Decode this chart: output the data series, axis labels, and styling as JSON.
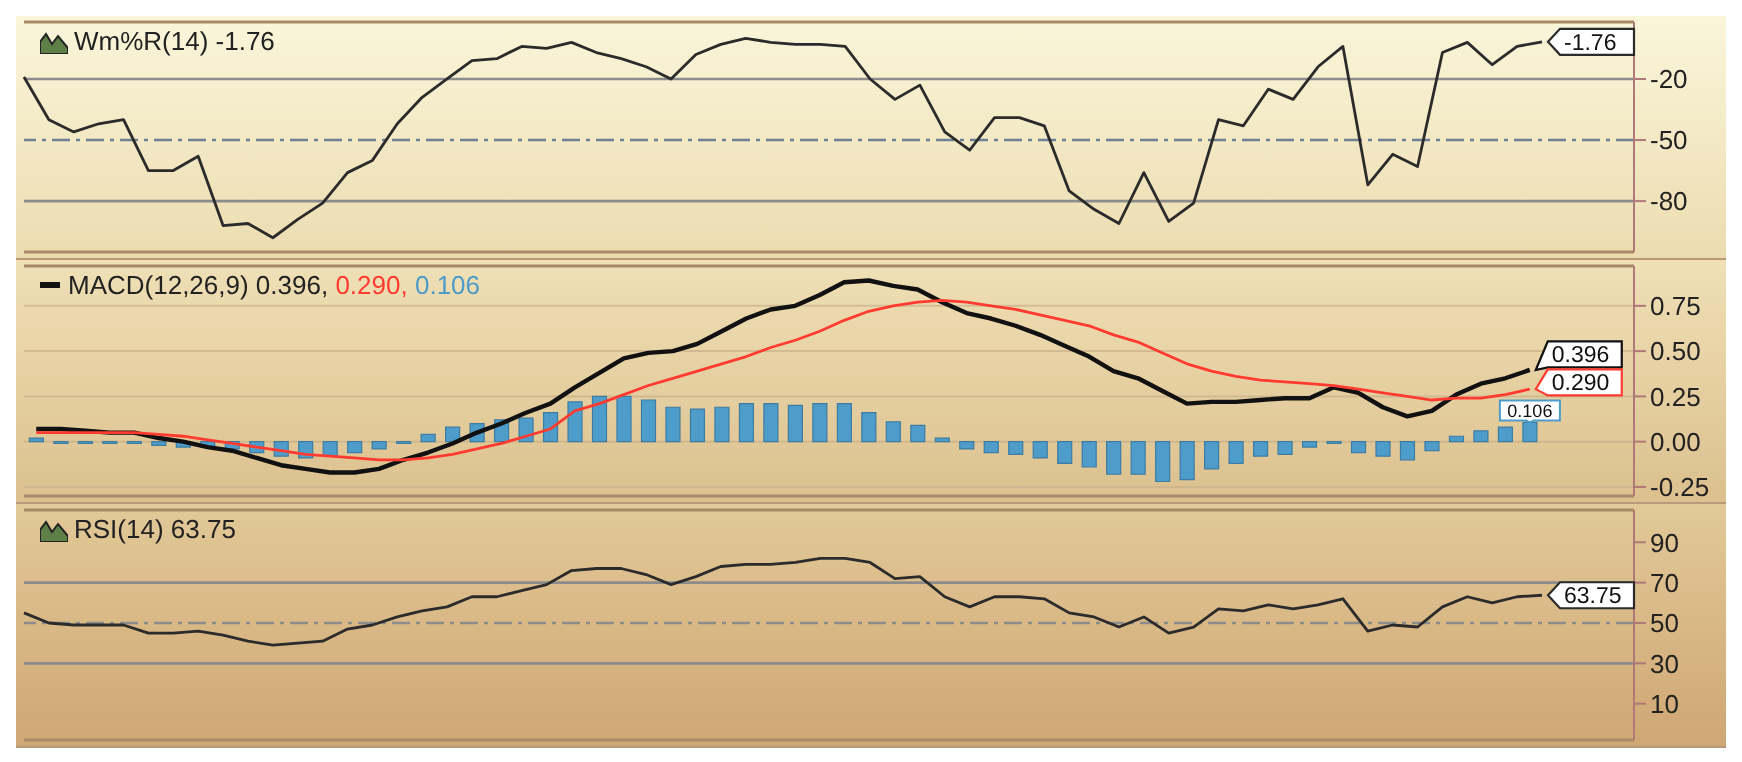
{
  "chart_data": [
    {
      "type": "line",
      "title": "Wm%R(14) -1.76",
      "categories": [
        null,
        null,
        null,
        null,
        null,
        null,
        null,
        null,
        null,
        null,
        null,
        null,
        null,
        null,
        null,
        null,
        null,
        null,
        null,
        null,
        null,
        null,
        null,
        null,
        null,
        null,
        null,
        null,
        null,
        null,
        null,
        null,
        null,
        null,
        null,
        null,
        null,
        null,
        null,
        null,
        null,
        null,
        null,
        null,
        null,
        null,
        null,
        null,
        null,
        null,
        null,
        null,
        null,
        null,
        null,
        null,
        null,
        null,
        null,
        null,
        null,
        null
      ],
      "series": [
        {
          "color": "#2b2b2b",
          "values": [
            -19,
            -40,
            -46,
            -42,
            -40,
            -65,
            -65,
            -58,
            -92,
            -91,
            -98,
            -89,
            -81,
            -66,
            -60,
            -42,
            -29,
            -20,
            -11,
            -10,
            -4,
            -5,
            -2,
            -7,
            -10,
            -14,
            -20,
            -8,
            -3,
            0,
            -2,
            -3,
            -3,
            -4,
            -20,
            -30,
            -23,
            -46,
            -55,
            -39,
            -39,
            -43,
            -75,
            -84,
            -91,
            -66,
            -90,
            -81,
            -40,
            -43,
            -25,
            -30,
            -14,
            -4,
            -72,
            -57,
            -63,
            -7,
            -2,
            -13,
            -4,
            -1.76
          ],
          "value_labels": [
            null,
            null,
            null,
            null,
            null,
            null,
            null,
            null,
            null,
            null,
            null,
            null,
            null,
            null,
            null,
            null,
            null,
            null,
            null,
            null,
            null,
            null,
            null,
            null,
            null,
            null,
            null,
            null,
            null,
            null,
            null,
            null,
            null,
            null,
            null,
            null,
            null,
            null,
            null,
            null,
            null,
            null,
            null,
            null,
            null,
            null,
            null,
            null,
            null,
            null,
            null,
            null,
            null,
            null,
            null,
            null,
            null,
            null,
            null,
            null,
            null,
            "-1.76"
          ]
        }
      ],
      "ylim": [
        -105,
        8
      ],
      "yticks": [
        -20,
        -50,
        -80
      ],
      "tick_labels": "y",
      "ref_lines": [
        {
          "axis": "y",
          "value": -20,
          "color": "#8c8c8c"
        },
        {
          "axis": "y",
          "value": -50,
          "color": "#6f7f95",
          "line_style": "dashed"
        },
        {
          "axis": "y",
          "value": -80,
          "color": "#8c8c8c"
        }
      ]
    },
    {
      "type": "line",
      "legend": "top left",
      "categories": [
        null,
        null,
        null,
        null,
        null,
        null,
        null,
        null,
        null,
        null,
        null,
        null,
        null,
        null,
        null,
        null,
        null,
        null,
        null,
        null,
        null,
        null,
        null,
        null,
        null,
        null,
        null,
        null,
        null,
        null,
        null,
        null,
        null,
        null,
        null,
        null,
        null,
        null,
        null,
        null,
        null,
        null,
        null,
        null,
        null,
        null,
        null,
        null,
        null,
        null,
        null,
        null,
        null,
        null,
        null,
        null,
        null,
        null,
        null,
        null,
        null,
        null
      ],
      "series": [
        {
          "name": "0.106",
          "type": "bar",
          "color": "#4e9cc9",
          "values": [
            0.02,
            -0.01,
            -0.01,
            -0.01,
            -0.01,
            -0.02,
            -0.03,
            -0.03,
            -0.04,
            -0.06,
            -0.08,
            -0.09,
            -0.08,
            -0.06,
            -0.04,
            -0.01,
            0.04,
            0.08,
            0.1,
            0.12,
            0.13,
            0.16,
            0.22,
            0.25,
            0.25,
            0.23,
            0.19,
            0.18,
            0.19,
            0.21,
            0.21,
            0.2,
            0.21,
            0.21,
            0.16,
            0.11,
            0.09,
            0.02,
            -0.04,
            -0.06,
            -0.07,
            -0.09,
            -0.12,
            -0.14,
            -0.18,
            -0.18,
            -0.22,
            -0.21,
            -0.15,
            -0.12,
            -0.08,
            -0.07,
            -0.03,
            -0.01,
            -0.06,
            -0.08,
            -0.1,
            -0.05,
            0.03,
            0.06,
            0.08,
            0.106
          ],
          "value_labels": [
            null,
            null,
            null,
            null,
            null,
            null,
            null,
            null,
            null,
            null,
            null,
            null,
            null,
            null,
            null,
            null,
            null,
            null,
            null,
            null,
            null,
            null,
            null,
            null,
            null,
            null,
            null,
            null,
            null,
            null,
            null,
            null,
            null,
            null,
            null,
            null,
            null,
            null,
            null,
            null,
            null,
            null,
            null,
            null,
            null,
            null,
            null,
            null,
            null,
            null,
            null,
            null,
            null,
            null,
            null,
            null,
            null,
            null,
            null,
            null,
            null,
            "0.106"
          ]
        },
        {
          "name": "MACD(12,26,9) 0.396,",
          "color": "#111111",
          "values": [
            0.07,
            0.07,
            0.06,
            0.05,
            0.05,
            0.02,
            0,
            -0.03,
            -0.05,
            -0.09,
            -0.13,
            -0.15,
            -0.17,
            -0.17,
            -0.15,
            -0.1,
            -0.06,
            -0.01,
            0.05,
            0.1,
            0.16,
            0.21,
            0.3,
            0.38,
            0.46,
            0.49,
            0.5,
            0.54,
            0.61,
            0.68,
            0.73,
            0.75,
            0.81,
            0.88,
            0.89,
            0.86,
            0.84,
            0.77,
            0.71,
            0.68,
            0.64,
            0.59,
            0.53,
            0.47,
            0.39,
            0.35,
            0.28,
            0.21,
            0.22,
            0.22,
            0.23,
            0.24,
            0.24,
            0.3,
            0.27,
            0.19,
            0.14,
            0.17,
            0.26,
            0.32,
            0.35,
            0.396
          ],
          "value_labels": [
            null,
            null,
            null,
            null,
            null,
            null,
            null,
            null,
            null,
            null,
            null,
            null,
            null,
            null,
            null,
            null,
            null,
            null,
            null,
            null,
            null,
            null,
            null,
            null,
            null,
            null,
            null,
            null,
            null,
            null,
            null,
            null,
            null,
            null,
            null,
            null,
            null,
            null,
            null,
            null,
            null,
            null,
            null,
            null,
            null,
            null,
            null,
            null,
            null,
            null,
            null,
            null,
            null,
            null,
            null,
            null,
            null,
            null,
            null,
            null,
            null,
            "0.396"
          ]
        },
        {
          "name": "0.290,",
          "color": "#ff3b30",
          "values": [
            0.05,
            0.05,
            0.05,
            0.05,
            0.05,
            0.04,
            0.03,
            0.01,
            -0.01,
            -0.03,
            -0.05,
            -0.07,
            -0.08,
            -0.09,
            -0.1,
            -0.1,
            -0.09,
            -0.07,
            -0.04,
            -0.01,
            0.03,
            0.07,
            0.17,
            0.21,
            0.26,
            0.31,
            0.35,
            0.39,
            0.43,
            0.47,
            0.52,
            0.56,
            0.61,
            0.67,
            0.72,
            0.75,
            0.77,
            0.78,
            0.77,
            0.75,
            0.73,
            0.7,
            0.67,
            0.64,
            0.59,
            0.55,
            0.49,
            0.43,
            0.39,
            0.36,
            0.34,
            0.33,
            0.32,
            0.31,
            0.29,
            0.27,
            0.25,
            0.23,
            0.24,
            0.24,
            0.26,
            0.29
          ],
          "value_labels": [
            null,
            null,
            null,
            null,
            null,
            null,
            null,
            null,
            null,
            null,
            null,
            null,
            null,
            null,
            null,
            null,
            null,
            null,
            null,
            null,
            null,
            null,
            null,
            null,
            null,
            null,
            null,
            null,
            null,
            null,
            null,
            null,
            null,
            null,
            null,
            null,
            null,
            null,
            null,
            null,
            null,
            null,
            null,
            null,
            null,
            null,
            null,
            null,
            null,
            null,
            null,
            null,
            null,
            null,
            null,
            null,
            null,
            null,
            null,
            null,
            null,
            "0.290"
          ]
        }
      ],
      "ylim": [
        -0.3,
        0.97
      ],
      "yticks": [
        0.75,
        {
          "value": 0.5,
          "label": "0.50"
        },
        0.25,
        {
          "value": 0,
          "label": "0.00"
        },
        -0.25
      ],
      "grid": "y",
      "tick_labels": "y"
    },
    {
      "type": "line",
      "title": "RSI(14) 63.75",
      "categories": [
        null,
        null,
        null,
        null,
        null,
        null,
        null,
        null,
        null,
        null,
        null,
        null,
        null,
        null,
        null,
        null,
        null,
        null,
        null,
        null,
        null,
        null,
        null,
        null,
        null,
        null,
        null,
        null,
        null,
        null,
        null,
        null,
        null,
        null,
        null,
        null,
        null,
        null,
        null,
        null,
        null,
        null,
        null,
        null,
        null,
        null,
        null,
        null,
        null,
        null,
        null,
        null,
        null,
        null,
        null,
        null,
        null,
        null,
        null,
        null,
        null,
        null
      ],
      "series": [
        {
          "color": "#2b2b2b",
          "values": [
            55,
            50,
            49,
            49,
            49,
            45,
            45,
            46,
            44,
            41,
            39,
            40,
            41,
            47,
            49,
            53,
            56,
            58,
            63,
            63,
            66,
            69,
            76,
            77,
            77,
            74,
            69,
            73,
            78,
            79,
            79,
            80,
            82,
            82,
            80,
            72,
            73,
            63,
            58,
            63,
            63,
            62,
            55,
            53,
            48,
            53,
            45,
            48,
            57,
            56,
            59,
            57,
            59,
            62,
            46,
            49,
            48,
            58,
            63,
            60,
            63,
            63.75
          ],
          "value_labels": [
            null,
            null,
            null,
            null,
            null,
            null,
            null,
            null,
            null,
            null,
            null,
            null,
            null,
            null,
            null,
            null,
            null,
            null,
            null,
            null,
            null,
            null,
            null,
            null,
            null,
            null,
            null,
            null,
            null,
            null,
            null,
            null,
            null,
            null,
            null,
            null,
            null,
            null,
            null,
            null,
            null,
            null,
            null,
            null,
            null,
            null,
            null,
            null,
            null,
            null,
            null,
            null,
            null,
            null,
            null,
            null,
            null,
            null,
            null,
            null,
            null,
            "63.75"
          ]
        }
      ],
      "ylim": [
        -8,
        106
      ],
      "yticks": [
        90,
        70,
        50,
        30,
        10
      ],
      "tick_labels": "y",
      "ref_lines": [
        {
          "axis": "y",
          "value": 70,
          "color": "#8c8c8c"
        },
        {
          "axis": "y",
          "value": 50,
          "color": "#8c8c8c",
          "line_style": "dashed"
        },
        {
          "axis": "y",
          "value": 30,
          "color": "#8c8c8c"
        }
      ]
    }
  ]
}
